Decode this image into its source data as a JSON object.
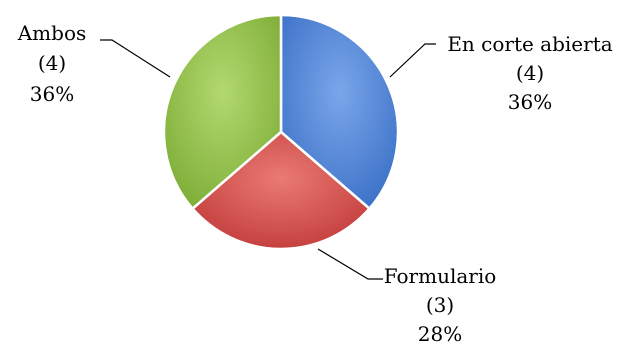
{
  "chart_data": {
    "type": "pie",
    "title": "",
    "slices": [
      {
        "name": "En corte abierta",
        "count": "(4)",
        "percent": "36%",
        "value": 4,
        "color": "#4f86d8"
      },
      {
        "name": "Formulario",
        "count": "(3)",
        "percent": "28%",
        "value": 3,
        "color": "#d24b4b"
      },
      {
        "name": "Ambos",
        "count": "(4)",
        "percent": "36%",
        "value": 4,
        "color": "#93c24a"
      }
    ],
    "start_angle_deg": 0,
    "direction": "clockwise",
    "legend": "none"
  }
}
